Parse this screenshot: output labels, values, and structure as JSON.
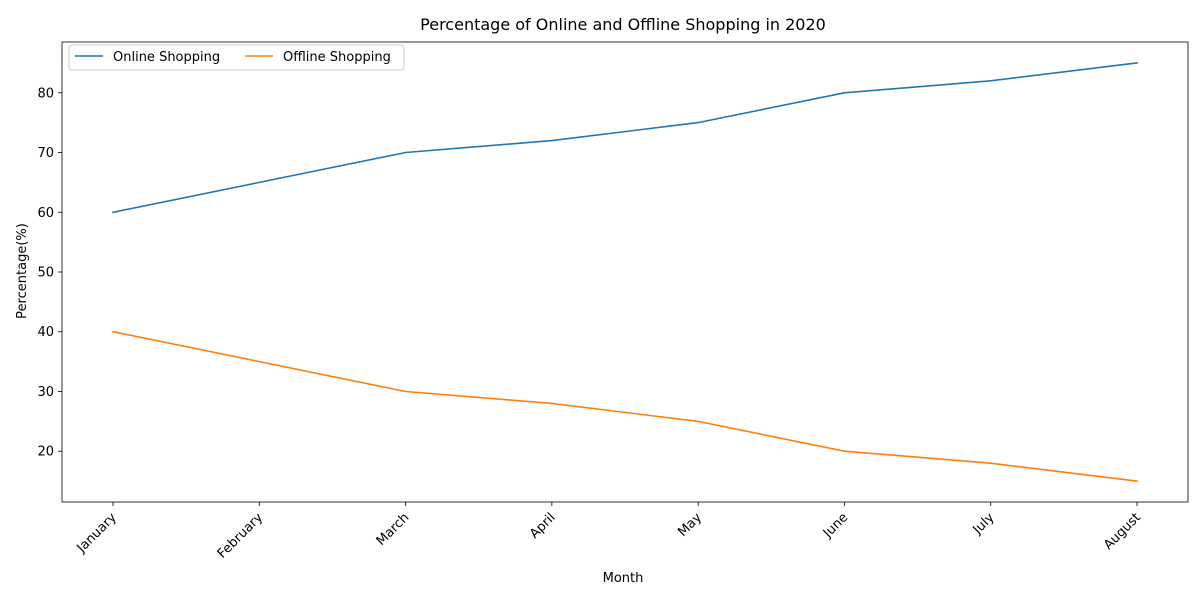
{
  "chart_data": {
    "type": "line",
    "title": "Percentage of Online and Offline Shopping in 2020",
    "xlabel": "Month",
    "ylabel": "Percentage(%)",
    "categories": [
      "January",
      "February",
      "March",
      "April",
      "May",
      "June",
      "July",
      "August"
    ],
    "series": [
      {
        "name": "Online Shopping",
        "values": [
          60,
          65,
          70,
          72,
          75,
          80,
          82,
          85
        ],
        "color": "#1f77b4"
      },
      {
        "name": "Offline Shopping",
        "values": [
          40,
          35,
          30,
          28,
          25,
          20,
          18,
          15
        ],
        "color": "#ff7f0e"
      }
    ],
    "ylim": [
      11.5,
      88.5
    ],
    "yticks": [
      20,
      30,
      40,
      50,
      60,
      70,
      80
    ],
    "grid": false,
    "legend_position": "top-left",
    "x_tick_rotation_deg": 45
  }
}
